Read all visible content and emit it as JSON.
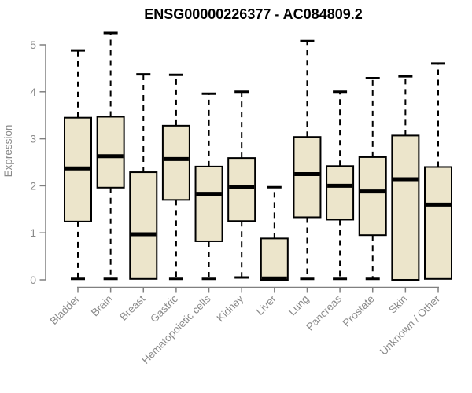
{
  "chart_data": {
    "type": "box",
    "title": "ENSG00000226377 - AC084809.2",
    "xlabel": "",
    "ylabel": "Expression",
    "ylim": [
      0,
      5.3
    ],
    "yticks": [
      0,
      1,
      2,
      3,
      4,
      5
    ],
    "grid": false,
    "legend": "none",
    "categories": [
      "Bladder",
      "Brain",
      "Breast",
      "Gastric",
      "Hematopoietic cells",
      "Kidney",
      "Liver",
      "Lung",
      "Pancreas",
      "Prostate",
      "Skin",
      "Unknown / Other"
    ],
    "series": [
      {
        "category": "Bladder",
        "whisker_low": 0.02,
        "q1": 1.24,
        "median": 2.37,
        "q3": 3.45,
        "whisker_high": 4.88
      },
      {
        "category": "Brain",
        "whisker_low": 0.02,
        "q1": 1.96,
        "median": 2.63,
        "q3": 3.47,
        "whisker_high": 5.25
      },
      {
        "category": "Breast",
        "whisker_low": 0.02,
        "q1": 0.02,
        "median": 0.97,
        "q3": 2.29,
        "whisker_high": 4.37
      },
      {
        "category": "Gastric",
        "whisker_low": 0.02,
        "q1": 1.7,
        "median": 2.57,
        "q3": 3.28,
        "whisker_high": 4.36
      },
      {
        "category": "Hematopoietic cells",
        "whisker_low": 0.02,
        "q1": 0.82,
        "median": 1.83,
        "q3": 2.41,
        "whisker_high": 3.96
      },
      {
        "category": "Kidney",
        "whisker_low": 0.05,
        "q1": 1.25,
        "median": 1.98,
        "q3": 2.59,
        "whisker_high": 4.0
      },
      {
        "category": "Liver",
        "whisker_low": 0.0,
        "q1": 0.0,
        "median": 0.03,
        "q3": 0.88,
        "whisker_high": 1.97
      },
      {
        "category": "Lung",
        "whisker_low": 0.02,
        "q1": 1.33,
        "median": 2.25,
        "q3": 3.04,
        "whisker_high": 5.08
      },
      {
        "category": "Pancreas",
        "whisker_low": 0.02,
        "q1": 1.28,
        "median": 2.0,
        "q3": 2.42,
        "whisker_high": 4.0
      },
      {
        "category": "Prostate",
        "whisker_low": 0.02,
        "q1": 0.95,
        "median": 1.88,
        "q3": 2.61,
        "whisker_high": 4.29
      },
      {
        "category": "Skin",
        "whisker_low": 0.0,
        "q1": 0.0,
        "median": 2.14,
        "q3": 3.07,
        "whisker_high": 4.33
      },
      {
        "category": "Unknown / Other",
        "whisker_low": 0.02,
        "q1": 0.02,
        "median": 1.6,
        "q3": 2.4,
        "whisker_high": 4.6
      }
    ]
  },
  "colors": {
    "box_fill": "#ECE5CB",
    "box_border": "#000000",
    "median": "#000000",
    "whisker": "#000000",
    "axis": "#808080",
    "tick_text": "#8a8a8a",
    "title_text": "#000000",
    "background": "#ffffff"
  }
}
